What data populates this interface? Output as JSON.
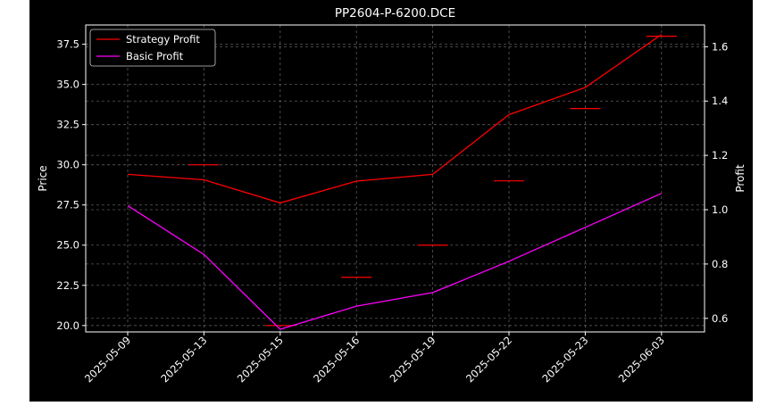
{
  "chart_data": {
    "type": "line",
    "title": "PP2604-P-6200.DCE",
    "ylabel": "Price",
    "y2label": "Profit",
    "categories": [
      "2025-05-09",
      "2025-05-13",
      "2025-05-15",
      "2025-05-16",
      "2025-05-19",
      "2025-05-22",
      "2025-05-23",
      "2025-06-03"
    ],
    "price_ticks": [
      "20.0",
      "22.5",
      "25.0",
      "27.5",
      "30.0",
      "32.5",
      "35.0",
      "37.5"
    ],
    "profit_ticks": [
      "0.6",
      "0.8",
      "1.0",
      "1.2",
      "1.4",
      "1.6"
    ],
    "ylim_price": [
      19.6,
      38.7
    ],
    "ylim_profit": [
      0.55,
      1.68
    ],
    "price_markers": [
      null,
      30.0,
      20.0,
      23.0,
      25.0,
      29.0,
      33.5,
      38.0
    ],
    "series": [
      {
        "name": "Strategy Profit",
        "axis": "right",
        "color": "#ff0000",
        "values": [
          1.13,
          1.11,
          1.025,
          1.105,
          1.13,
          1.35,
          1.45,
          1.645
        ]
      },
      {
        "name": "Basic Profit",
        "axis": "right",
        "color": "#ff00ff",
        "values": [
          1.015,
          0.835,
          0.56,
          0.645,
          0.695,
          0.81,
          0.935,
          1.06
        ]
      }
    ],
    "legend_position": "upper-left",
    "grid": true,
    "colors": {
      "background": "#000000",
      "foreground": "#ffffff",
      "marker": "#ff0000",
      "grid": "#808080"
    }
  }
}
